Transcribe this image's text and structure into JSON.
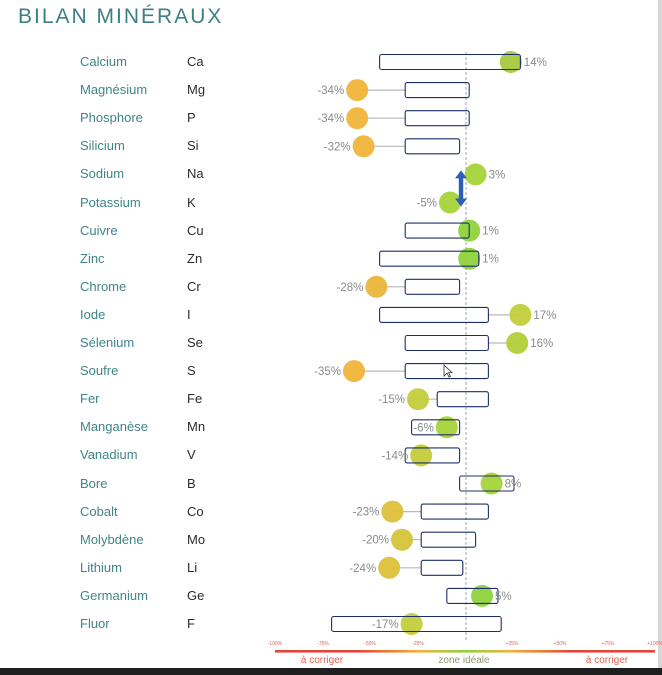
{
  "title": "BILAN MINÉRAUX",
  "chart_data": {
    "type": "bar",
    "title": "BILAN MINÉRAUX",
    "xlim": [
      -100,
      100
    ],
    "items": [
      {
        "name": "Calcium",
        "symbol": "Ca",
        "value": 14,
        "label": "14%",
        "range": [
          -27,
          17
        ],
        "color": "#a6c93c"
      },
      {
        "name": "Magnésium",
        "symbol": "Mg",
        "value": -34,
        "label": "-34%",
        "range": [
          -19,
          1
        ],
        "color": "#f0b43a"
      },
      {
        "name": "Phosphore",
        "symbol": "P",
        "value": -34,
        "label": "-34%",
        "range": [
          -19,
          1
        ],
        "color": "#f0b43a"
      },
      {
        "name": "Silicium",
        "symbol": "Si",
        "value": -32,
        "label": "-32%",
        "range": [
          -19,
          -2
        ],
        "color": "#f0b43a"
      },
      {
        "name": "Sodium",
        "symbol": "Na",
        "value": 3,
        "label": "3%",
        "range": null,
        "color": "#a6d43a"
      },
      {
        "name": "Potassium",
        "symbol": "K",
        "value": -5,
        "label": "-5%",
        "range": null,
        "color": "#a6d43a"
      },
      {
        "name": "Cuivre",
        "symbol": "Cu",
        "value": 1,
        "label": "1%",
        "range": [
          -19,
          1
        ],
        "color": "#8ed23c"
      },
      {
        "name": "Zinc",
        "symbol": "Zn",
        "value": 1,
        "label": "1%",
        "range": [
          -27,
          4
        ],
        "color": "#8ed23c"
      },
      {
        "name": "Chrome",
        "symbol": "Cr",
        "value": -28,
        "label": "-28%",
        "range": [
          -19,
          -2
        ],
        "color": "#eab63a"
      },
      {
        "name": "Iode",
        "symbol": "I",
        "value": 17,
        "label": "17%",
        "range": [
          -27,
          7
        ],
        "color": "#c2ce3a"
      },
      {
        "name": "Sélenium",
        "symbol": "Se",
        "value": 16,
        "label": "16%",
        "range": [
          -19,
          7
        ],
        "color": "#b4ce3a"
      },
      {
        "name": "Soufre",
        "symbol": "S",
        "value": -35,
        "label": "-35%",
        "range": [
          -19,
          7
        ],
        "color": "#f0b43a"
      },
      {
        "name": "Fer",
        "symbol": "Fe",
        "value": -15,
        "label": "-15%",
        "range": [
          -9,
          7
        ],
        "color": "#c4ce3a"
      },
      {
        "name": "Manganèse",
        "symbol": "Mn",
        "value": -6,
        "label": "-6%",
        "range": [
          -17,
          -2
        ],
        "color": "#a6d43a"
      },
      {
        "name": "Vanadium",
        "symbol": "V",
        "value": -14,
        "label": "-14%",
        "range": [
          -19,
          -2
        ],
        "color": "#c4ce3a"
      },
      {
        "name": "Bore",
        "symbol": "B",
        "value": 8,
        "label": "8%",
        "range": [
          -2,
          15
        ],
        "color": "#a6d43a"
      },
      {
        "name": "Cobalt",
        "symbol": "Co",
        "value": -23,
        "label": "-23%",
        "range": [
          -14,
          7
        ],
        "color": "#dcc03a"
      },
      {
        "name": "Molybdène",
        "symbol": "Mo",
        "value": -20,
        "label": "-20%",
        "range": [
          -14,
          3
        ],
        "color": "#d4c43a"
      },
      {
        "name": "Lithium",
        "symbol": "Li",
        "value": -24,
        "label": "-24%",
        "range": [
          -14,
          -1
        ],
        "color": "#dcc03a"
      },
      {
        "name": "Germanium",
        "symbol": "Ge",
        "value": 5,
        "label": "5%",
        "range": [
          -6,
          10
        ],
        "color": "#8ed23c"
      },
      {
        "name": "Fluor",
        "symbol": "F",
        "value": -17,
        "label": "-17%",
        "range": [
          -42,
          11
        ],
        "color": "#c4ce3a"
      }
    ],
    "ticks": [
      "-100%",
      "-75%",
      "-50%",
      "-25%",
      "+25%",
      "+50%",
      "+75%",
      "+100%"
    ],
    "zones": [
      "à corriger",
      "zone idéale",
      "à corriger"
    ],
    "colors": {
      "accent": "#3d7f87",
      "low": "#f0b43a",
      "ideal": "#8ed23c",
      "alert": "#e0483a",
      "box": "#1c2f6a",
      "arrow": "#2d5fb8"
    }
  }
}
